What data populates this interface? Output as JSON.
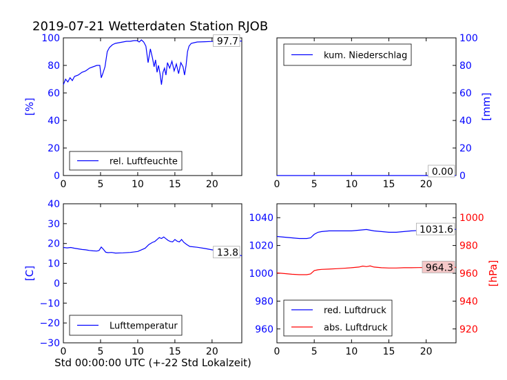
{
  "title": "2019-07-21 Wetterdaten Station RJOB",
  "xlabel": "Std 00:00:00 UTC (+-22 Std Lokalzeit)",
  "colors": {
    "blue": "#0000ff",
    "red": "#ff0000",
    "axis": "#000000"
  },
  "chart_data": [
    {
      "type": "line",
      "ylabel": "[%]",
      "xlim": [
        0,
        24
      ],
      "ylim": [
        0,
        100
      ],
      "xticks": [
        "0",
        "5",
        "10",
        "15",
        "20"
      ],
      "yticks": [
        "0",
        "20",
        "40",
        "60",
        "80",
        "100"
      ],
      "legend": "bottom-left",
      "last_value_label": "97.7",
      "series": [
        {
          "name": "rel. Luftfeuchte",
          "color": "#0000ff",
          "x": [
            0,
            0.3,
            0.6,
            0.9,
            1.2,
            1.5,
            2,
            2.5,
            3,
            3.5,
            4,
            4.5,
            4.9,
            5.1,
            5.3,
            5.6,
            5.9,
            6.2,
            6.6,
            7,
            7.5,
            8,
            8.5,
            9,
            9.5,
            9.9,
            10.2,
            10.5,
            10.8,
            11.1,
            11.4,
            11.7,
            12,
            12.2,
            12.4,
            12.6,
            12.8,
            13,
            13.2,
            13.4,
            13.6,
            13.8,
            14,
            14.3,
            14.6,
            14.9,
            15.2,
            15.5,
            15.8,
            16.1,
            16.3,
            16.5,
            16.7,
            16.9,
            17.2,
            17.6,
            18,
            19,
            20,
            21,
            22,
            23,
            24
          ],
          "values": [
            66,
            70,
            68,
            71,
            69,
            72,
            73,
            75,
            76,
            78,
            79,
            80,
            80,
            71,
            74,
            79,
            90,
            93,
            95,
            96,
            96.5,
            97,
            97.5,
            97.5,
            98,
            98,
            97,
            98.5,
            97,
            94,
            82,
            92,
            85,
            79,
            84,
            75,
            80,
            74,
            66,
            75,
            78,
            73,
            82,
            78,
            83,
            76,
            81,
            74,
            82,
            79,
            73,
            80,
            90,
            94,
            96,
            96.5,
            97,
            97.2,
            97.4,
            97.5,
            97.6,
            97.7,
            97.7
          ]
        }
      ]
    },
    {
      "type": "line",
      "ylabel": "[mm]",
      "xlim": [
        0,
        24
      ],
      "ylim": [
        0,
        100
      ],
      "xticks": [
        "0",
        "5",
        "10",
        "15",
        "20"
      ],
      "yticks": [
        "0",
        "20",
        "40",
        "60",
        "80",
        "100"
      ],
      "legend": "top-left",
      "last_value_label": "0.00",
      "series": [
        {
          "name": "kum. Niederschlag",
          "color": "#0000ff",
          "x": [
            0,
            24
          ],
          "values": [
            0,
            0
          ]
        }
      ]
    },
    {
      "type": "line",
      "ylabel": "[C]",
      "xlim": [
        0,
        24
      ],
      "ylim": [
        -30,
        40
      ],
      "xticks": [
        "0",
        "5",
        "10",
        "15",
        "20"
      ],
      "yticks": [
        "−30",
        "−20",
        "−10",
        "0",
        "10",
        "20",
        "30",
        "40"
      ],
      "legend": "bottom-left",
      "last_value_label": "13.8",
      "series": [
        {
          "name": "Lufttemperatur",
          "color": "#0000ff",
          "x": [
            0,
            0.5,
            1,
            1.5,
            2,
            2.5,
            3,
            3.5,
            4,
            4.5,
            4.8,
            5.1,
            5.4,
            5.7,
            6,
            6.5,
            7,
            8,
            9,
            10,
            10.5,
            11,
            11.5,
            12,
            12.3,
            12.6,
            12.9,
            13.2,
            13.5,
            13.8,
            14.1,
            14.4,
            14.7,
            15,
            15.3,
            15.6,
            15.9,
            16.2,
            16.6,
            17,
            18,
            19,
            20,
            21,
            22,
            23,
            24
          ],
          "values": [
            18,
            17.8,
            18,
            17.6,
            17.3,
            17,
            16.8,
            16.5,
            16.3,
            16.2,
            16.5,
            18.2,
            17,
            15.6,
            15.4,
            15.5,
            15.2,
            15.3,
            15.5,
            16,
            16.8,
            17.6,
            19.5,
            20.6,
            21,
            22,
            23,
            22.5,
            23.3,
            22.4,
            21.5,
            21,
            20.8,
            22,
            21.2,
            20.8,
            22,
            20.6,
            19.5,
            18.5,
            18.1,
            17.5,
            16.8,
            16.2,
            15.5,
            14.8,
            13.8
          ]
        }
      ]
    },
    {
      "type": "line",
      "ylabel_left": "",
      "ylabel_right": "[hPa]",
      "xlim": [
        0,
        24
      ],
      "ylim_left": [
        950,
        1050
      ],
      "ylim_right": [
        910,
        1010
      ],
      "xticks": [
        "0",
        "5",
        "10",
        "15",
        "20"
      ],
      "yticks_left": [
        "960",
        "980",
        "1000",
        "1020",
        "1040"
      ],
      "yticks_right": [
        "920",
        "940",
        "960",
        "980",
        "1000"
      ],
      "legend": "bottom-left",
      "last_value_labels": [
        "1031.6",
        "964.3"
      ],
      "series": [
        {
          "name": "red. Luftdruck",
          "color": "#0000ff",
          "axis": "left",
          "x": [
            0,
            1,
            2,
            3,
            4,
            4.5,
            5,
            5.5,
            6,
            7,
            8,
            9,
            10,
            11,
            12,
            13,
            14,
            15,
            16,
            17,
            18,
            19,
            20,
            21,
            22,
            23,
            24
          ],
          "values": [
            1026.5,
            1026,
            1025.5,
            1025,
            1025,
            1025.5,
            1028,
            1029.5,
            1030,
            1030.5,
            1030.5,
            1030.5,
            1030.5,
            1031,
            1031.5,
            1030.5,
            1030,
            1029.5,
            1029.5,
            1030,
            1030.5,
            1030.8,
            1031,
            1031.2,
            1031.4,
            1031.5,
            1031.6
          ]
        },
        {
          "name": "abs. Luftdruck",
          "color": "#ff0000",
          "axis": "right",
          "x": [
            0,
            1,
            2,
            3,
            4,
            4.5,
            5,
            5.5,
            6,
            7,
            8,
            9,
            10,
            11,
            11.5,
            12,
            12.5,
            13,
            14,
            15,
            16,
            17,
            18,
            19,
            20,
            21,
            22,
            23,
            24
          ],
          "values": [
            960.3,
            959.8,
            959.3,
            959,
            959,
            959.5,
            962,
            962.5,
            962.8,
            963,
            963.3,
            963.6,
            964,
            964.5,
            965.2,
            964.8,
            965.3,
            964.5,
            964,
            963.8,
            963.8,
            964,
            964,
            964.1,
            964.2,
            964.2,
            964.3,
            964.3,
            964.3
          ]
        }
      ]
    }
  ]
}
